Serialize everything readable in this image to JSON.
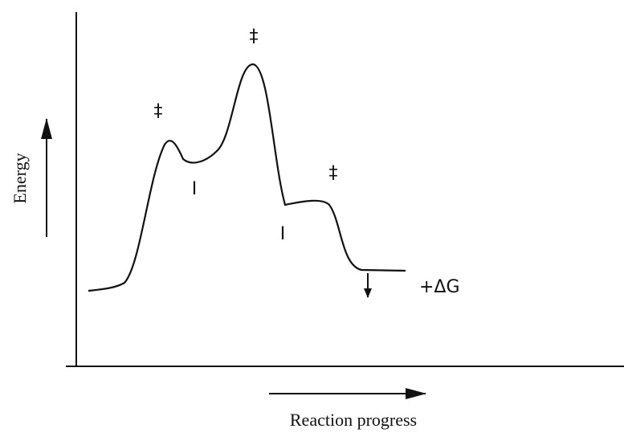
{
  "axes": {
    "y_label": "Energy",
    "x_label": "Reaction progress"
  },
  "annotations": {
    "transition_states": [
      "‡",
      "‡",
      "‡"
    ],
    "intermediates": [
      "I",
      "I"
    ],
    "delta_g": "+ΔG"
  }
}
